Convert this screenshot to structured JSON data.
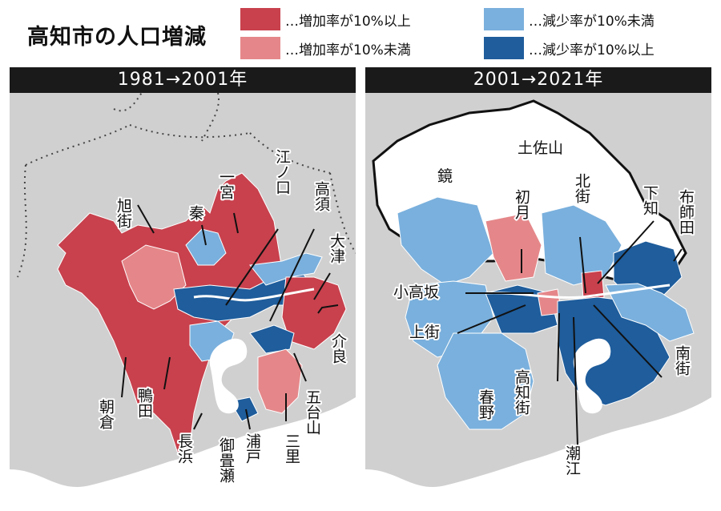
{
  "title": "高知市の人口増減",
  "legend": [
    {
      "label": "…増加率が10%以上",
      "color": "#c8414d",
      "icon": "swatch"
    },
    {
      "label": "…増加率が10%未満",
      "color": "#e5878a",
      "icon": "swatch"
    },
    {
      "label": "…減少率が10%未満",
      "color": "#7ab0dd",
      "icon": "swatch"
    },
    {
      "label": "…減少率が10%以上",
      "color": "#1f5d9c",
      "icon": "swatch"
    }
  ],
  "panels": [
    {
      "header": "1981→2001年",
      "labels": {
        "asahimachi": "旭街",
        "hata": "秦",
        "ichinomiya": "一宮",
        "enokuchi": "江ノ口",
        "takasu": "高須",
        "otsu": "大津",
        "kera": "介良",
        "godaisan": "五台山",
        "mitsuzato": "三里",
        "urado": "浦戸",
        "mimase": "御畳瀬",
        "nagahama": "長浜",
        "kamoda": "鴨田",
        "asakura": "朝倉"
      }
    },
    {
      "header": "2001→2021年",
      "labels": {
        "tosayama": "土佐山",
        "kagami": "鏡",
        "hatsutsuki": "初月",
        "kitamachi": "北街",
        "shimochi": "下知",
        "fuseda": "布師田",
        "kotakasa": "小高坂",
        "kamimachi": "上街",
        "kochimachi": "高知街",
        "haruno": "春野",
        "ushioe": "潮江",
        "minamimachi": "南街"
      }
    }
  ],
  "colors": {
    "up10": "#c8414d",
    "up": "#e5878a",
    "down": "#7ab0dd",
    "down10": "#1f5d9c",
    "land": "#d0d0d0",
    "water": "#ffffff",
    "outline": "#111111"
  }
}
